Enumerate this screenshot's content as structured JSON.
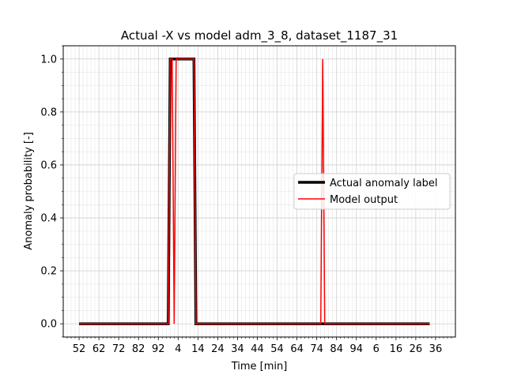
{
  "chart_data": {
    "type": "line",
    "title": "Actual -X vs model adm_3_8, dataset_1187_31",
    "xlabel": "Time [min]",
    "ylabel": "Anomaly probability [-]",
    "x_tick_labels": [
      "52",
      "62",
      "72",
      "82",
      "92",
      "4",
      "14",
      "24",
      "34",
      "44",
      "54",
      "64",
      "74",
      "84",
      "94",
      "6",
      "16",
      "26",
      "36"
    ],
    "x_tick_positions": [
      0,
      10,
      20,
      30,
      40,
      50,
      60,
      70,
      80,
      90,
      100,
      110,
      120,
      130,
      140,
      150,
      160,
      170,
      180
    ],
    "xlim": [
      -8,
      190
    ],
    "ylim": [
      -0.05,
      1.05
    ],
    "y_ticks": [
      0.0,
      0.2,
      0.4,
      0.6,
      0.8,
      1.0
    ],
    "y_tick_labels": [
      "0.0",
      "0.2",
      "0.4",
      "0.6",
      "0.8",
      "1.0"
    ],
    "grid": true,
    "legend_position": "center-right",
    "series": [
      {
        "name": "Actual anomaly label",
        "color": "#000000",
        "x": [
          0,
          45,
          46,
          58,
          59,
          177
        ],
        "y": [
          0,
          0,
          1,
          1,
          0,
          0
        ]
      },
      {
        "name": "Model output",
        "color": "#ff0000",
        "x": [
          0,
          45,
          46,
          47,
          48,
          49,
          58,
          59,
          122,
          123,
          124,
          177
        ],
        "y": [
          0,
          0,
          1,
          1,
          0,
          1,
          1,
          0,
          0,
          1,
          0,
          0
        ]
      }
    ]
  }
}
